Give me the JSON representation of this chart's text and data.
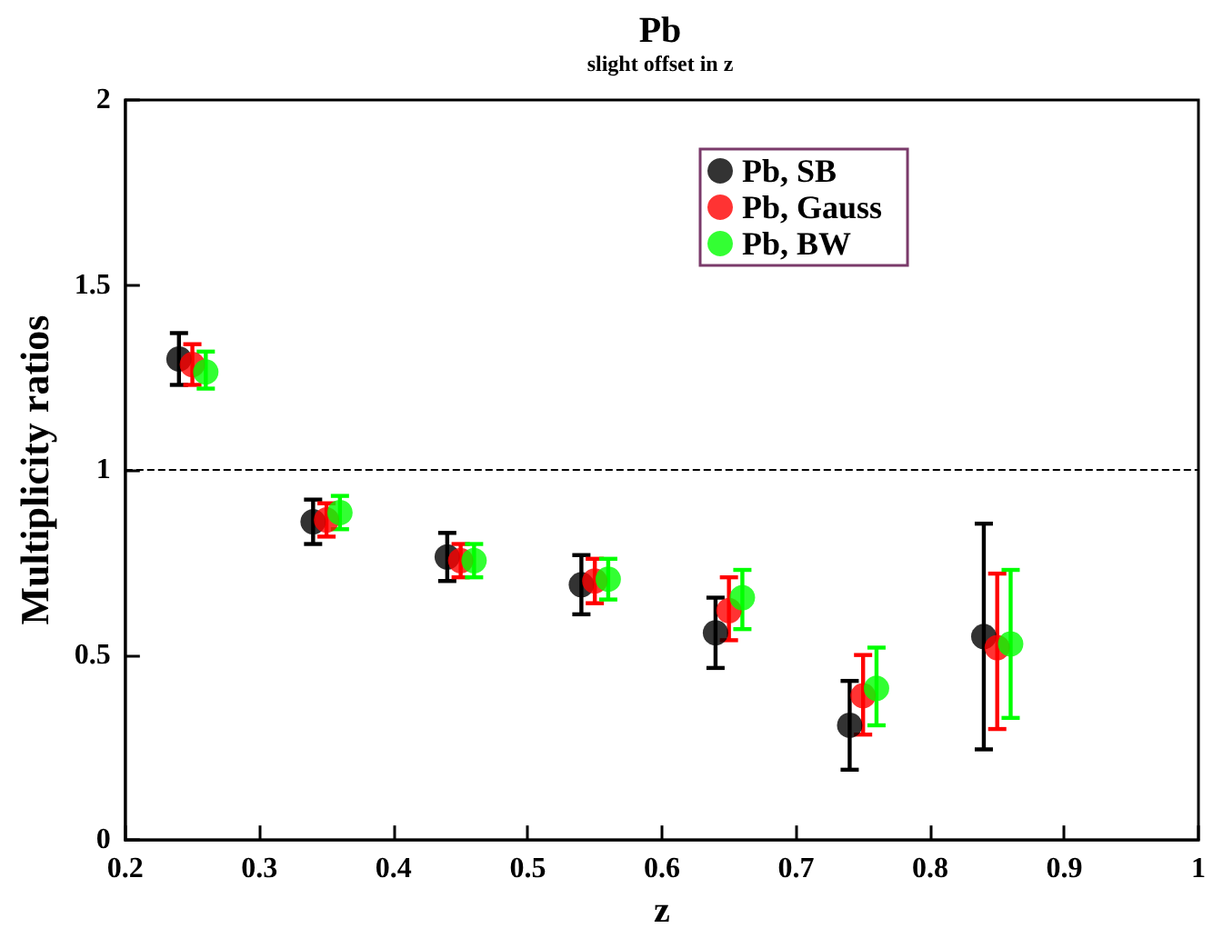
{
  "chart_data": {
    "type": "scatter",
    "title": "Pb",
    "subtitle": "slight offset in z",
    "xlabel": "z",
    "ylabel": "Multiplicity ratios",
    "xlim": [
      0.2,
      1
    ],
    "xticks": [
      {
        "value": 0.2,
        "label": "0.2"
      },
      {
        "value": 0.3,
        "label": "0.3"
      },
      {
        "value": 0.4,
        "label": "0.4"
      },
      {
        "value": 0.5,
        "label": "0.5"
      },
      {
        "value": 0.6,
        "label": "0.6"
      },
      {
        "value": 0.7,
        "label": "0.7"
      },
      {
        "value": 0.8,
        "label": "0.8"
      },
      {
        "value": 0.9,
        "label": "0.9"
      },
      1
    ],
    "ylim": [
      0,
      2
    ],
    "yticks": [
      0,
      0.5,
      1,
      1.5,
      2
    ],
    "series": [
      {
        "name": "Pb, SB",
        "color": "#000000",
        "x": [
          0.24,
          0.34,
          0.44,
          0.54,
          0.64,
          0.74,
          0.84
        ],
        "values": [
          1.3,
          0.86,
          0.765,
          0.69,
          0.56,
          0.31,
          0.55
        ],
        "errors": [
          [
            1.23,
            1.37
          ],
          [
            0.8,
            0.92
          ],
          [
            0.7,
            0.83
          ],
          [
            0.61,
            0.77
          ],
          [
            0.465,
            0.655
          ],
          [
            0.19,
            0.43
          ],
          [
            0.245,
            0.855
          ]
        ]
      },
      {
        "name": "Pb, Gauss",
        "color": "#ff0000",
        "x": [
          0.25,
          0.35,
          0.45,
          0.55,
          0.65,
          0.75,
          0.85
        ],
        "values": [
          1.285,
          0.865,
          0.755,
          0.7,
          0.62,
          0.39,
          0.52
        ],
        "errors": [
          [
            1.23,
            1.34
          ],
          [
            0.82,
            0.91
          ],
          [
            0.71,
            0.8
          ],
          [
            0.64,
            0.76
          ],
          [
            0.54,
            0.71
          ],
          [
            0.285,
            0.5
          ],
          [
            0.3,
            0.72
          ]
        ]
      },
      {
        "name": "Pb, BW",
        "color": "#00ff00",
        "x": [
          0.26,
          0.36,
          0.46,
          0.56,
          0.66,
          0.76,
          0.86
        ],
        "values": [
          1.265,
          0.885,
          0.755,
          0.705,
          0.655,
          0.41,
          0.53
        ],
        "errors": [
          [
            1.22,
            1.32
          ],
          [
            0.84,
            0.93
          ],
          [
            0.71,
            0.8
          ],
          [
            0.65,
            0.76
          ],
          [
            0.57,
            0.73
          ],
          [
            0.31,
            0.52
          ],
          [
            0.33,
            0.73
          ]
        ]
      }
    ],
    "ref_lines": [
      {
        "axis": "y",
        "value": 1,
        "line_style": "dashed",
        "color": "#000000"
      }
    ],
    "legend": "top right",
    "marker": "circle",
    "grid": false
  }
}
